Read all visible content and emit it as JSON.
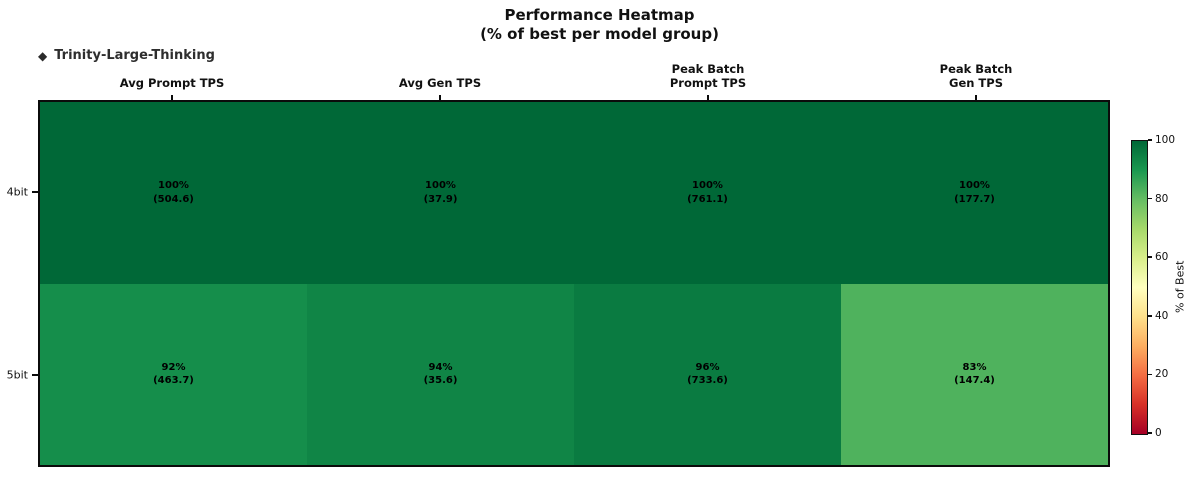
{
  "title": {
    "line1": "Performance Heatmap",
    "line2": "(% of best per model group)"
  },
  "legend": {
    "marker": "◆",
    "marker_color": "#2b2b2b",
    "label": "Trinity-Large-Thinking"
  },
  "chart_data": {
    "type": "heatmap",
    "title": "Performance Heatmap (% of best per model group)",
    "columns": [
      "Avg Prompt TPS",
      "Avg Gen TPS",
      "Peak Batch\nPrompt TPS",
      "Peak Batch\nGen TPS"
    ],
    "rows": [
      "4bit",
      "5bit"
    ],
    "values_percent": [
      [
        100,
        100,
        100,
        100
      ],
      [
        92,
        94,
        96,
        83
      ]
    ],
    "values_tps": [
      [
        504.6,
        37.9,
        761.1,
        177.7
      ],
      [
        463.7,
        35.6,
        733.6,
        147.4
      ]
    ],
    "cell_colors": [
      [
        "#006837",
        "#006837",
        "#006837",
        "#006837"
      ],
      [
        "#158e4b",
        "#108546",
        "#0a7b41",
        "#4fb25d"
      ]
    ],
    "colorbar": {
      "label": "% of Best",
      "min": 0,
      "max": 100,
      "ticks": [
        0,
        20,
        40,
        60,
        80,
        100
      ],
      "gradient_stops_bottom_to_top": [
        "#a50026",
        "#d73027",
        "#f46d43",
        "#fdae61",
        "#fee08b",
        "#ffffbf",
        "#d9ef8b",
        "#a6d96a",
        "#66bd63",
        "#1a9850",
        "#006837"
      ]
    },
    "layout": {
      "grid": false,
      "legend_position": "top-left",
      "colorbar_position": "right"
    }
  }
}
